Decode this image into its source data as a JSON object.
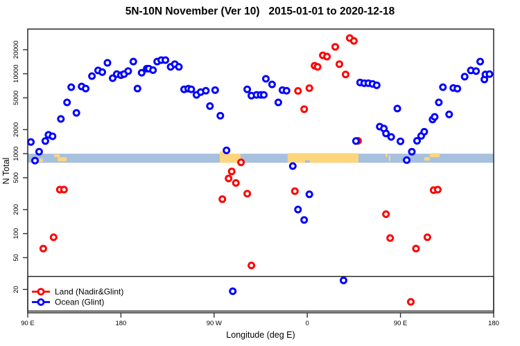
{
  "title": "5N-10N November (Ver 10)   2015-01-01 to 2020-12-18",
  "chart_data": {
    "type": "scatter",
    "title": "5N-10N November (Ver 10)   2015-01-01 to 2020-12-18",
    "xlabel": "Longitude (deg E)",
    "ylabel": "N Total",
    "x_axis": {
      "note": "longitude wraps eastward from 90E: 90E,180,90W,0,90E,180 = continuous 90..540 deg E",
      "range": [
        90,
        540
      ],
      "ticks": [
        {
          "lon": 90,
          "label": "90 E"
        },
        {
          "lon": 180,
          "label": "180"
        },
        {
          "lon": 270,
          "label": "90 W"
        },
        {
          "lon": 360,
          "label": "0"
        },
        {
          "lon": 450,
          "label": "90 E"
        },
        {
          "lon": 540,
          "label": "180"
        }
      ]
    },
    "y_axis": {
      "scale": "log",
      "range": [
        10,
        40000
      ],
      "ticks": [
        20,
        50,
        100,
        200,
        500,
        1000,
        2000,
        5000,
        10000,
        20000
      ]
    },
    "band": {
      "n_min": 770,
      "n_max": 1000,
      "color": "#a7c0de"
    },
    "highlight_color": "#fdd67c",
    "highlight_patches": [
      {
        "lon1": 275.5,
        "lon2": 295.6,
        "dy": 0,
        "h": 13
      },
      {
        "lon1": 275.5,
        "lon2": 281.5,
        "dy": -3.5,
        "h": 5
      },
      {
        "lon1": 341.0,
        "lon2": 409.4,
        "dy": -0.8,
        "h": 13.8
      },
      {
        "lon1": 100.7,
        "lon2": 104.7,
        "dy": 7,
        "h": 5
      },
      {
        "lon1": 115.4,
        "lon2": 121.0,
        "dy": 1,
        "h": 4
      },
      {
        "lon1": 119.0,
        "lon2": 127.5,
        "dy": 5,
        "h": 6
      },
      {
        "lon1": 435.5,
        "lon2": 437.5,
        "dy": 0,
        "h": 5
      },
      {
        "lon1": 438.8,
        "lon2": 440.2,
        "dy": 2,
        "h": 9
      },
      {
        "lon1": 473.0,
        "lon2": 478.3,
        "dy": 5,
        "h": 5
      },
      {
        "lon1": 478.3,
        "lon2": 487.8,
        "dy": -0.8,
        "h": 6
      }
    ],
    "band_slivers": [
      {
        "lon1": 357.8,
        "lon2": 362.5,
        "dy": 9.5,
        "h": 3.5
      }
    ],
    "legend": {
      "position": "bottom-left-full-width-box",
      "entries": [
        {
          "label": "Land (Nadir&Glint)",
          "color": "#ff0000"
        },
        {
          "label": "Ocean (Glint)",
          "color": "#0000ff"
        }
      ]
    },
    "series": [
      {
        "name": "Land (Nadir&Glint)",
        "color": "#ff0000",
        "points": [
          [
            105,
            65
          ],
          [
            115,
            90
          ],
          [
            121,
            355
          ],
          [
            125,
            355
          ],
          [
            278,
            270
          ],
          [
            284,
            490
          ],
          [
            287,
            600
          ],
          [
            291,
            430
          ],
          [
            296,
            780
          ],
          [
            302,
            316
          ],
          [
            306,
            40
          ],
          [
            348,
            340
          ],
          [
            351,
            6100
          ],
          [
            357,
            3600
          ],
          [
            362,
            6600
          ],
          [
            367,
            12600
          ],
          [
            370,
            12200
          ],
          [
            375,
            17000
          ],
          [
            379,
            16400
          ],
          [
            387,
            21700
          ],
          [
            391,
            13200
          ],
          [
            397,
            9800
          ],
          [
            401,
            28000
          ],
          [
            405,
            25800
          ],
          [
            409,
            1450
          ],
          [
            436,
            175
          ],
          [
            440,
            88
          ],
          [
            460,
            14
          ],
          [
            465,
            65
          ],
          [
            476,
            90
          ],
          [
            482,
            350
          ],
          [
            486,
            355
          ]
        ]
      },
      {
        "name": "Ocean (Glint)",
        "color": "#0000ff",
        "points": [
          [
            93,
            1400
          ],
          [
            97,
            820
          ],
          [
            101,
            1060
          ],
          [
            107,
            1440
          ],
          [
            110,
            1720
          ],
          [
            114,
            1650
          ],
          [
            122,
            2720
          ],
          [
            128,
            4380
          ],
          [
            132,
            6790
          ],
          [
            137,
            3240
          ],
          [
            142,
            6930
          ],
          [
            146,
            6530
          ],
          [
            152,
            9350
          ],
          [
            158,
            11000
          ],
          [
            162,
            10500
          ],
          [
            167,
            13700
          ],
          [
            172,
            8800
          ],
          [
            176,
            9900
          ],
          [
            180,
            9600
          ],
          [
            183,
            9900
          ],
          [
            187,
            10800
          ],
          [
            192,
            14200
          ],
          [
            196,
            6530
          ],
          [
            200,
            10300
          ],
          [
            205,
            11600
          ],
          [
            207,
            11600
          ],
          [
            211,
            11100
          ],
          [
            215,
            14200
          ],
          [
            219,
            14800
          ],
          [
            223,
            14800
          ],
          [
            228,
            12200
          ],
          [
            232,
            13200
          ],
          [
            236,
            12200
          ],
          [
            241,
            6380
          ],
          [
            245,
            6520
          ],
          [
            248,
            6380
          ],
          [
            253,
            5440
          ],
          [
            257,
            5900
          ],
          [
            262,
            6130
          ],
          [
            266,
            3940
          ],
          [
            271,
            6250
          ],
          [
            276,
            2990
          ],
          [
            282,
            1100
          ],
          [
            288,
            19
          ],
          [
            302,
            6380
          ],
          [
            306,
            5330
          ],
          [
            311,
            5440
          ],
          [
            315,
            5440
          ],
          [
            318,
            5440
          ],
          [
            320,
            8640
          ],
          [
            326,
            7360
          ],
          [
            332,
            4380
          ],
          [
            336,
            6250
          ],
          [
            340,
            6130
          ],
          [
            346,
            700
          ],
          [
            351,
            200
          ],
          [
            357,
            148
          ],
          [
            362,
            310
          ],
          [
            395,
            26
          ],
          [
            407,
            1440
          ],
          [
            411,
            7780
          ],
          [
            415,
            7620
          ],
          [
            419,
            7620
          ],
          [
            423,
            7470
          ],
          [
            427,
            7180
          ],
          [
            430,
            2180
          ],
          [
            434,
            2060
          ],
          [
            436,
            1790
          ],
          [
            441,
            1620
          ],
          [
            447,
            3670
          ],
          [
            450,
            1430
          ],
          [
            456,
            830
          ],
          [
            461,
            1060
          ],
          [
            466,
            1450
          ],
          [
            470,
            1670
          ],
          [
            473,
            1880
          ],
          [
            481,
            2680
          ],
          [
            483,
            2890
          ],
          [
            487,
            4380
          ],
          [
            491,
            6790
          ],
          [
            497,
            3100
          ],
          [
            501,
            6650
          ],
          [
            505,
            6520
          ],
          [
            512,
            9200
          ],
          [
            518,
            11000
          ],
          [
            523,
            10800
          ],
          [
            527,
            14200
          ],
          [
            531,
            8500
          ],
          [
            532,
            9800
          ],
          [
            536,
            9900
          ]
        ]
      }
    ]
  }
}
